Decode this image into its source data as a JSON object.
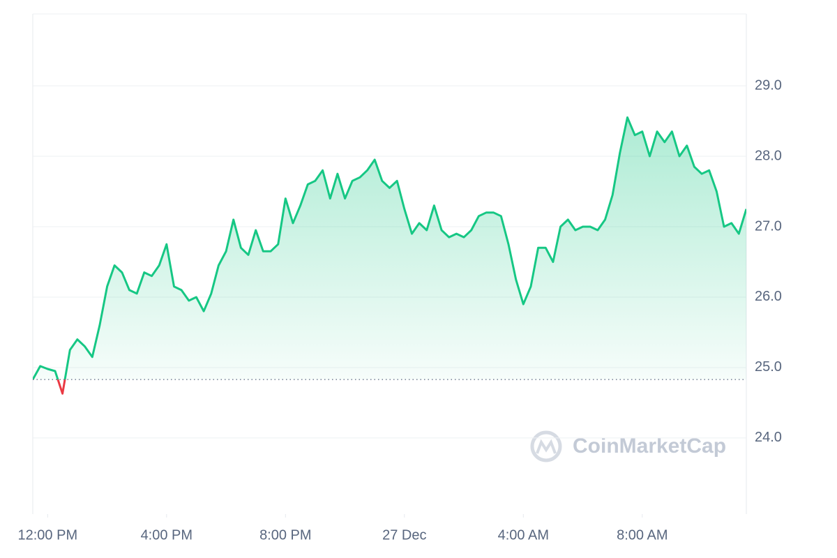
{
  "chart_data": {
    "type": "line",
    "watermark": "CoinMarketCap",
    "x": [
      11.5,
      11.75,
      12,
      12.25,
      12.5,
      12.75,
      13,
      13.25,
      13.5,
      13.75,
      14,
      14.25,
      14.5,
      14.75,
      15,
      15.25,
      15.5,
      15.75,
      16,
      16.25,
      16.5,
      16.75,
      17,
      17.25,
      17.5,
      17.75,
      18,
      18.25,
      18.5,
      18.75,
      19,
      19.25,
      19.5,
      19.75,
      20,
      20.25,
      20.5,
      20.75,
      21,
      21.25,
      21.5,
      21.75,
      22,
      22.25,
      22.5,
      22.75,
      23,
      23.25,
      23.5,
      23.75,
      24,
      24.25,
      24.5,
      24.75,
      25,
      25.25,
      25.5,
      25.75,
      26,
      26.25,
      26.5,
      26.75,
      27,
      27.25,
      27.5,
      27.75,
      28,
      28.25,
      28.5,
      28.75,
      29,
      29.25,
      29.5,
      29.75,
      30,
      30.25,
      30.5,
      30.75,
      31,
      31.25,
      31.5,
      31.75,
      32,
      32.25,
      32.5,
      32.75,
      33,
      33.25,
      33.5,
      33.75,
      34,
      34.25,
      34.5,
      34.75,
      35,
      35.25,
      35.5
    ],
    "series": [
      {
        "color": "#16c784",
        "below_color": "#ea3943",
        "values": [
          24.83,
          25.02,
          24.98,
          24.95,
          24.63,
          25.25,
          25.4,
          25.3,
          25.15,
          25.6,
          26.15,
          26.45,
          26.35,
          26.1,
          26.05,
          26.35,
          26.3,
          26.45,
          26.75,
          26.15,
          26.1,
          25.95,
          26.0,
          25.8,
          26.05,
          26.45,
          26.65,
          27.1,
          26.7,
          26.6,
          26.95,
          26.65,
          26.65,
          26.75,
          27.4,
          27.05,
          27.3,
          27.6,
          27.65,
          27.8,
          27.4,
          27.75,
          27.4,
          27.65,
          27.7,
          27.8,
          27.95,
          27.65,
          27.55,
          27.65,
          27.25,
          26.9,
          27.05,
          26.95,
          27.3,
          26.95,
          26.85,
          26.9,
          26.85,
          26.95,
          27.15,
          27.2,
          27.2,
          27.15,
          26.75,
          26.25,
          25.9,
          26.15,
          26.7,
          26.7,
          26.5,
          27.0,
          27.1,
          26.95,
          27.0,
          27.0,
          26.95,
          27.1,
          27.45,
          28.05,
          28.55,
          28.3,
          28.35,
          28.0,
          28.35,
          28.2,
          28.35,
          28.0,
          28.15,
          27.85,
          27.75,
          27.8,
          27.5,
          27.0,
          27.05,
          26.9,
          27.25
        ]
      }
    ],
    "reference_value": 24.83,
    "xlim": [
      11.5,
      35.5
    ],
    "xticks": [
      {
        "value": 12,
        "label": "12:00 PM"
      },
      {
        "value": 16,
        "label": "4:00 PM"
      },
      {
        "value": 20,
        "label": "8:00 PM"
      },
      {
        "value": 24,
        "label": "27 Dec"
      },
      {
        "value": 28,
        "label": "4:00 AM"
      },
      {
        "value": 32,
        "label": "8:00 AM"
      }
    ],
    "ylim": [
      22.92,
      30.02
    ],
    "yticks": [
      {
        "value": 24,
        "label": "24.0"
      },
      {
        "value": 25,
        "label": "25.0"
      },
      {
        "value": 26,
        "label": "26.0"
      },
      {
        "value": 27,
        "label": "27.0"
      },
      {
        "value": 28,
        "label": "28.0"
      },
      {
        "value": 29,
        "label": "29.0"
      }
    ],
    "grid": true
  }
}
